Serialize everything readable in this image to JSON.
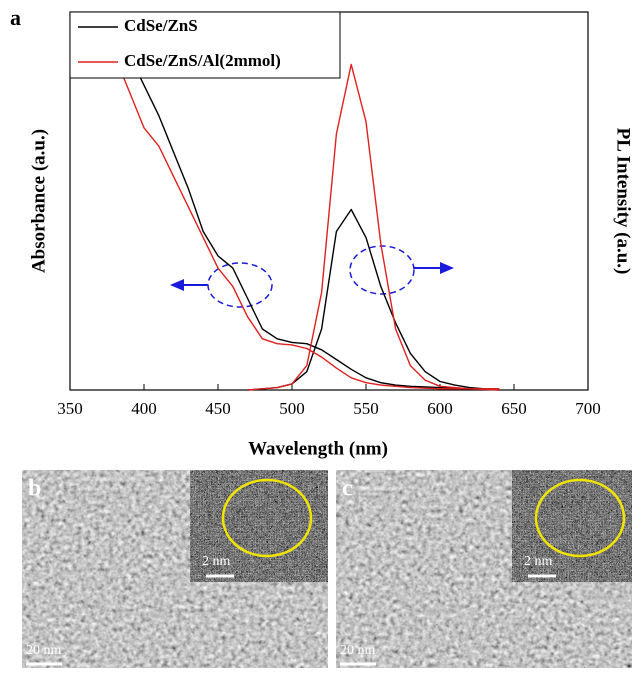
{
  "chart_data": {
    "type": "line",
    "panel_label": "a",
    "xlabel": "Wavelength (nm)",
    "ylabel": "Absorbance (a.u.)",
    "y2label": "PL Intensity (a.u.)",
    "xlim": [
      350,
      700
    ],
    "xticks": [
      350,
      400,
      450,
      500,
      550,
      600,
      650,
      700
    ],
    "ylim": [
      0,
      3.1
    ],
    "x": [
      380,
      390,
      400,
      410,
      420,
      430,
      440,
      450,
      460,
      470,
      480,
      490,
      500,
      510,
      520,
      530,
      540,
      550,
      560,
      570,
      580,
      590,
      600,
      610,
      620,
      630,
      640
    ],
    "series": [
      {
        "name": "CdSe/ZnS",
        "color": "#000000",
        "absorbance": [
          null,
          2.75,
          2.5,
          2.25,
          1.95,
          1.65,
          1.3,
          1.1,
          1.0,
          0.75,
          0.5,
          0.42,
          0.39,
          0.38,
          0.33,
          0.25,
          0.17,
          0.1,
          0.06,
          0.04,
          0.03,
          0.025,
          0.02,
          0.015,
          0.01,
          0.01,
          0.01
        ],
        "pl": [
          null,
          null,
          null,
          null,
          null,
          null,
          null,
          null,
          null,
          0,
          0.01,
          0.02,
          0.05,
          0.15,
          0.5,
          1.3,
          1.48,
          1.25,
          0.85,
          0.55,
          0.3,
          0.15,
          0.07,
          0.04,
          0.02,
          0.01,
          0
        ]
      },
      {
        "name": "CdSe/ZnS/Al(2mmol)",
        "color": "#e02020",
        "absorbance": [
          2.75,
          2.45,
          2.15,
          2.0,
          1.75,
          1.5,
          1.25,
          1.0,
          0.85,
          0.6,
          0.42,
          0.38,
          0.37,
          0.34,
          0.27,
          0.18,
          0.1,
          0.06,
          0.04,
          0.03,
          0.02,
          0.015,
          0.01,
          0.01,
          0.01,
          0.01,
          0.01
        ],
        "pl": [
          null,
          null,
          null,
          null,
          null,
          null,
          null,
          null,
          null,
          0,
          0.01,
          0.02,
          0.05,
          0.2,
          0.8,
          2.1,
          2.67,
          2.2,
          1.2,
          0.5,
          0.2,
          0.08,
          0.03,
          0.02,
          0.01,
          0.005,
          0
        ]
      }
    ]
  },
  "images": [
    {
      "label": "b",
      "inset_scale": "2 nm",
      "scale": "20 nm"
    },
    {
      "label": "c",
      "inset_scale": "2 nm",
      "scale": "20 nm"
    }
  ]
}
